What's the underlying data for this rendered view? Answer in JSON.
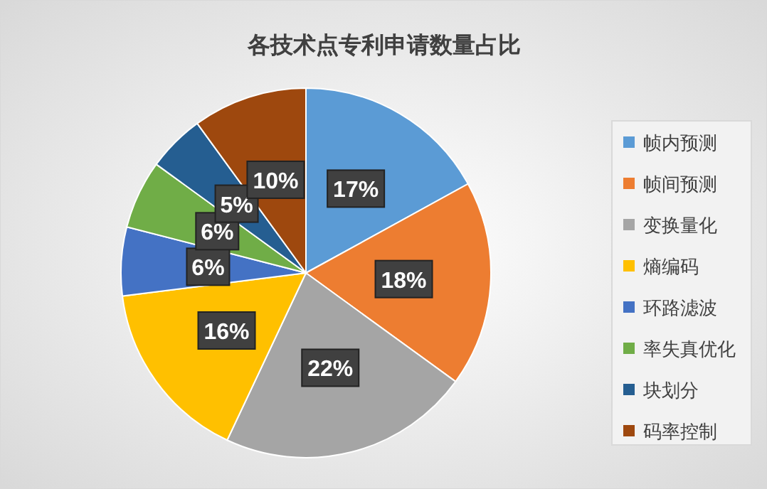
{
  "chart_data": {
    "type": "pie",
    "title": "各技术点专利申请数量占比",
    "categories": [
      "帧内预测",
      "帧间预测",
      "变换量化",
      "熵编码",
      "环路滤波",
      "率失真优化",
      "块划分",
      "码率控制"
    ],
    "values": [
      17,
      18,
      22,
      16,
      6,
      6,
      5,
      10
    ],
    "colors": [
      "#5b9bd5",
      "#ed7d31",
      "#a5a5a5",
      "#ffc000",
      "#4472c4",
      "#70ad47",
      "#255e91",
      "#9e480e"
    ],
    "value_labels": [
      "17%",
      "18%",
      "22%",
      "16%",
      "6%",
      "6%",
      "5%",
      "10%"
    ],
    "legend": "right"
  }
}
